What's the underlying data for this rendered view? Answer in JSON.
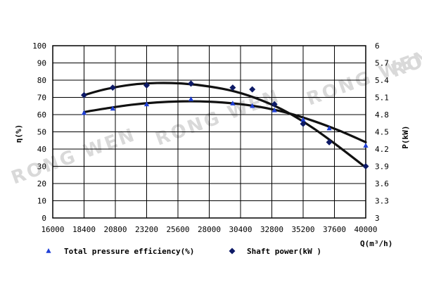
{
  "chart_data": {
    "type": "line",
    "watermark": "RONG WEN",
    "x_axis": {
      "label": "Q(m³/h)",
      "range": [
        16000,
        40000
      ],
      "ticks": [
        16000,
        18400,
        20800,
        23200,
        25600,
        28000,
        30400,
        32800,
        35200,
        37600,
        40000
      ],
      "tick_labels": [
        "16000",
        "18400",
        "20800",
        "23200",
        "25600",
        "28000",
        "30400",
        "32800",
        "35200",
        "37600",
        "40000"
      ]
    },
    "y_left": {
      "label": "η(%)",
      "range": [
        0,
        100
      ],
      "ticks": [
        0,
        10,
        20,
        30,
        40,
        50,
        60,
        70,
        80,
        90,
        100
      ],
      "tick_labels": [
        "0",
        "10",
        "20",
        "30",
        "40",
        "50",
        "60",
        "70",
        "80",
        "90",
        "100"
      ]
    },
    "y_right": {
      "label": "P(kW)",
      "range": [
        3,
        6
      ],
      "ticks": [
        3,
        3.3,
        3.6,
        3.9,
        4.2,
        4.5,
        4.8,
        5.1,
        5.4,
        5.7,
        6
      ],
      "tick_labels": [
        "3",
        "3.3",
        "3.6",
        "3.9",
        "4.2",
        "4.5",
        "4.8",
        "5.1",
        "5.4",
        "5.7",
        "6"
      ]
    },
    "grid": true,
    "legend_placement": "bottom",
    "series": [
      {
        "name": "Total pressure efficiency(%)",
        "axis": "left",
        "marker": "triangle",
        "color": "#1f3fd6",
        "x": [
          18400,
          20600,
          23200,
          26600,
          29800,
          31300,
          33000,
          35200,
          37200,
          40000
        ],
        "y": [
          61,
          63.5,
          66,
          69,
          66.5,
          65,
          62.5,
          57,
          52,
          42
        ]
      },
      {
        "name": "Shaft power(kW )",
        "axis": "right",
        "marker": "diamond",
        "color": "#0d1a66",
        "x": [
          18400,
          20600,
          23200,
          26600,
          29800,
          31300,
          33000,
          35200,
          37200,
          40000
        ],
        "y": [
          5.14,
          5.27,
          5.31,
          5.34,
          5.27,
          5.24,
          4.98,
          4.64,
          4.32,
          3.9
        ]
      }
    ],
    "fitted_curves": [
      {
        "axis": "left",
        "x": [
          18400,
          20000,
          22000,
          24000,
          26000,
          28000,
          30000,
          32000,
          34000,
          36000,
          38000,
          40000
        ],
        "y": [
          61.5,
          63.5,
          65.7,
          67.1,
          67.7,
          67.5,
          66.4,
          64.3,
          61,
          56.3,
          50.6,
          44
        ]
      },
      {
        "axis": "right",
        "x": [
          18400,
          20000,
          22000,
          24000,
          26000,
          28000,
          30000,
          32000,
          34000,
          36000,
          38000,
          40000
        ],
        "y": [
          5.14,
          5.24,
          5.32,
          5.35,
          5.34,
          5.29,
          5.2,
          5.05,
          4.84,
          4.56,
          4.23,
          3.88
        ]
      }
    ]
  }
}
